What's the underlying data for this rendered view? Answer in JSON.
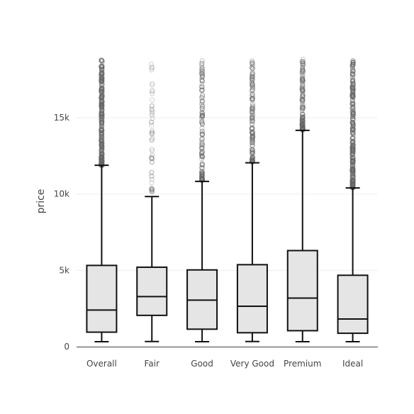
{
  "chart_data": {
    "type": "box",
    "ylabel": "price",
    "ylim": [
      0,
      19000
    ],
    "yticks": [
      0,
      5000,
      10000,
      15000
    ],
    "ytick_labels": [
      "0",
      "5k",
      "10k",
      "15k"
    ],
    "grid": true,
    "legend": "none",
    "colors": {
      "box_fill": "#e5e5e5",
      "box_stroke": "#111111",
      "outlier": "#666666",
      "grid": "#eeeeee",
      "axis": "#444444"
    },
    "categories": [
      "Overall",
      "Fair",
      "Good",
      "Very Good",
      "Premium",
      "Ideal"
    ],
    "boxes": [
      {
        "min": 326,
        "q1": 950,
        "median": 2401,
        "q3": 5324,
        "max": 11886,
        "outliers_from": 11886,
        "outliers_to": 18823,
        "outlier_density": "dense"
      },
      {
        "min": 337,
        "q1": 2050,
        "median": 3282,
        "q3": 5206,
        "max": 9836,
        "outliers_from": 10100,
        "outliers_to": 18574,
        "outlier_density": "sparse"
      },
      {
        "min": 327,
        "q1": 1145,
        "median": 3051,
        "q3": 5029,
        "max": 10830,
        "outliers_from": 10900,
        "outliers_to": 18788,
        "outlier_density": "medium"
      },
      {
        "min": 336,
        "q1": 912,
        "median": 2648,
        "q3": 5372,
        "max": 12048,
        "outliers_from": 12100,
        "outliers_to": 18818,
        "outlier_density": "medium"
      },
      {
        "min": 326,
        "q1": 1046,
        "median": 3185,
        "q3": 6296,
        "max": 14176,
        "outliers_from": 14200,
        "outliers_to": 18823,
        "outlier_density": "medium"
      },
      {
        "min": 326,
        "q1": 878,
        "median": 1810,
        "q3": 4678,
        "max": 10400,
        "outliers_from": 10420,
        "outliers_to": 18806,
        "outlier_density": "dense"
      }
    ]
  }
}
